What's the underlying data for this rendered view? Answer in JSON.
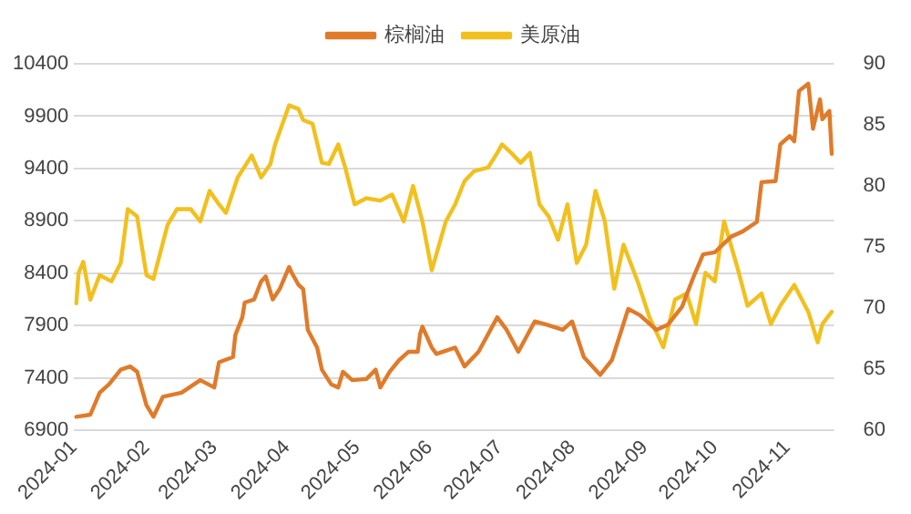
{
  "chart_data": {
    "type": "line",
    "series": [
      {
        "name": "棕榈油",
        "color": "#e07b2a",
        "axis": "y",
        "x": [
          "2024-01-02",
          "2024-01-08",
          "2024-01-12",
          "2024-01-16",
          "2024-01-21",
          "2024-01-25",
          "2024-01-28",
          "2024-02-01",
          "2024-02-04",
          "2024-02-08",
          "2024-02-16",
          "2024-02-24",
          "2024-03-01",
          "2024-03-03",
          "2024-03-09",
          "2024-03-10",
          "2024-03-13",
          "2024-03-14",
          "2024-03-18",
          "2024-03-21",
          "2024-03-23",
          "2024-03-26",
          "2024-03-29",
          "2024-04-02",
          "2024-04-03",
          "2024-04-06",
          "2024-04-08",
          "2024-04-10",
          "2024-04-14",
          "2024-04-16",
          "2024-04-20",
          "2024-04-23",
          "2024-04-25",
          "2024-04-29",
          "2024-05-05",
          "2024-05-09",
          "2024-05-11",
          "2024-05-15",
          "2024-05-19",
          "2024-05-23",
          "2024-05-27",
          "2024-05-28",
          "2024-05-29",
          "2024-06-02",
          "2024-06-04",
          "2024-06-12",
          "2024-06-16",
          "2024-06-22",
          "2024-06-30",
          "2024-07-04",
          "2024-07-09",
          "2024-07-16",
          "2024-07-21",
          "2024-07-28",
          "2024-08-01",
          "2024-08-06",
          "2024-08-13",
          "2024-08-18",
          "2024-08-25",
          "2024-08-30",
          "2024-09-06",
          "2024-09-11",
          "2024-09-17",
          "2024-09-22",
          "2024-09-26",
          "2024-10-01",
          "2024-10-08",
          "2024-10-13",
          "2024-10-19",
          "2024-10-21",
          "2024-10-27",
          "2024-10-29",
          "2024-11-02",
          "2024-11-04",
          "2024-11-06",
          "2024-11-10",
          "2024-11-12",
          "2024-11-15",
          "2024-11-16",
          "2024-11-19",
          "2024-11-20"
        ],
        "values": [
          7030,
          7050,
          7260,
          7340,
          7480,
          7510,
          7460,
          7140,
          7030,
          7220,
          7260,
          7380,
          7310,
          7550,
          7600,
          7810,
          7980,
          8120,
          8150,
          8320,
          8370,
          8150,
          8250,
          8460,
          8410,
          8290,
          8250,
          7860,
          7690,
          7480,
          7340,
          7310,
          7460,
          7380,
          7390,
          7480,
          7310,
          7460,
          7570,
          7650,
          7650,
          7820,
          7890,
          7690,
          7630,
          7690,
          7510,
          7650,
          7980,
          7860,
          7650,
          7940,
          7910,
          7860,
          7940,
          7600,
          7430,
          7570,
          8060,
          8000,
          7860,
          7910,
          8080,
          8370,
          8580,
          8600,
          8750,
          8800,
          8890,
          9270,
          9280,
          9630,
          9710,
          9660,
          10140,
          10210,
          9780,
          10060,
          9870,
          9950,
          9540
        ]
      },
      {
        "name": "美原油",
        "color": "#f2c01e",
        "axis": "y2",
        "x": [
          "2024-01-02",
          "2024-01-03",
          "2024-01-05",
          "2024-01-08",
          "2024-01-12",
          "2024-01-17",
          "2024-01-21",
          "2024-01-24",
          "2024-01-28",
          "2024-02-01",
          "2024-02-04",
          "2024-02-10",
          "2024-02-14",
          "2024-02-20",
          "2024-02-24",
          "2024-02-28",
          "2024-03-03",
          "2024-03-06",
          "2024-03-11",
          "2024-03-17",
          "2024-03-21",
          "2024-03-25",
          "2024-03-27",
          "2024-04-02",
          "2024-04-06",
          "2024-04-08",
          "2024-04-12",
          "2024-04-16",
          "2024-04-19",
          "2024-04-23",
          "2024-04-26",
          "2024-04-30",
          "2024-05-05",
          "2024-05-11",
          "2024-05-16",
          "2024-05-21",
          "2024-05-25",
          "2024-05-29",
          "2024-06-02",
          "2024-06-08",
          "2024-06-12",
          "2024-06-16",
          "2024-06-20",
          "2024-06-26",
          "2024-06-30",
          "2024-07-02",
          "2024-07-06",
          "2024-07-10",
          "2024-07-14",
          "2024-07-18",
          "2024-07-22",
          "2024-07-26",
          "2024-07-30",
          "2024-08-03",
          "2024-08-07",
          "2024-08-11",
          "2024-08-15",
          "2024-08-19",
          "2024-08-23",
          "2024-08-29",
          "2024-09-03",
          "2024-09-09",
          "2024-09-14",
          "2024-09-19",
          "2024-09-23",
          "2024-09-27",
          "2024-10-01",
          "2024-10-05",
          "2024-10-11",
          "2024-10-15",
          "2024-10-21",
          "2024-10-25",
          "2024-10-29",
          "2024-11-04",
          "2024-11-10",
          "2024-11-14",
          "2024-11-16",
          "2024-11-20"
        ],
        "values": [
          70.4,
          72.9,
          73.8,
          70.7,
          72.7,
          72.2,
          73.7,
          78.1,
          77.5,
          72.7,
          72.4,
          76.8,
          78.1,
          78.1,
          77.1,
          79.6,
          78.5,
          77.8,
          80.7,
          82.5,
          80.7,
          81.8,
          83.4,
          86.6,
          86.3,
          85.4,
          85.1,
          81.9,
          81.8,
          83.4,
          81.5,
          78.5,
          79.0,
          78.8,
          79.3,
          77.1,
          80.0,
          77.1,
          73.1,
          77.1,
          78.5,
          80.4,
          81.2,
          81.5,
          82.7,
          83.4,
          82.7,
          81.9,
          82.7,
          78.5,
          77.5,
          75.6,
          78.5,
          73.7,
          75.2,
          79.6,
          77.1,
          71.6,
          75.2,
          72.2,
          69.3,
          66.8,
          70.7,
          71.2,
          68.7,
          72.9,
          72.2,
          77.1,
          73.1,
          70.2,
          71.2,
          68.7,
          70.2,
          71.9,
          69.7,
          67.2,
          68.7,
          69.7
        ]
      }
    ],
    "xlim": [
      "2024-01-01",
      "2024-11-21"
    ],
    "xticks": [
      {
        "value": "2024-01-01",
        "label": "2024-01"
      },
      {
        "value": "2024-02-01",
        "label": "2024-02"
      },
      {
        "value": "2024-03-01",
        "label": "2024-03"
      },
      {
        "value": "2024-04-01",
        "label": "2024-04"
      },
      {
        "value": "2024-05-01",
        "label": "2024-05"
      },
      {
        "value": "2024-06-01",
        "label": "2024-06"
      },
      {
        "value": "2024-07-01",
        "label": "2024-07"
      },
      {
        "value": "2024-08-01",
        "label": "2024-08"
      },
      {
        "value": "2024-09-01",
        "label": "2024-09"
      },
      {
        "value": "2024-10-01",
        "label": "2024-10"
      },
      {
        "value": "2024-11-01",
        "label": "2024-11"
      }
    ],
    "ylim": [
      6900,
      10400
    ],
    "yticks": [
      6900,
      7400,
      7900,
      8400,
      8900,
      9400,
      9900,
      10400
    ],
    "y2lim": [
      60,
      90
    ],
    "y2ticks": [
      60,
      65,
      70,
      75,
      80,
      85,
      90
    ],
    "grid": "y",
    "legend": "top",
    "marker": "none",
    "line_style": "solid"
  }
}
